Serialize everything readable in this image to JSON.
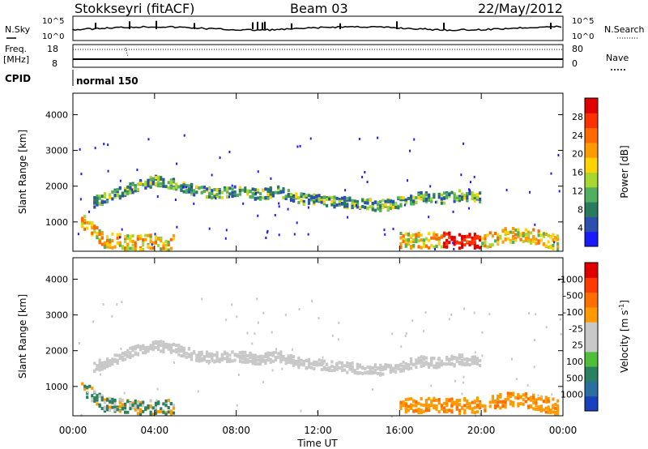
{
  "header": {
    "station": "Stokkseyri (fitACF)",
    "beam": "Beam 03",
    "date": "22/May/2012"
  },
  "top_panels": {
    "nsky": {
      "label": "N.Sky",
      "tick_top": "10^5",
      "tick_bottom": "10^0"
    },
    "nsearch": {
      "label": "N.Search",
      "tick_top": "10^5",
      "tick_bottom": "10^0"
    },
    "freq": {
      "label_line1": "Freq.",
      "label_line2": "[MHz]",
      "tick_top": "18",
      "tick_bottom": "8"
    },
    "nave": {
      "label": "Nave",
      "tick_top": "80",
      "tick_bottom": "0"
    },
    "cpid": {
      "label": "CPID",
      "value": "normal 150"
    }
  },
  "chart_data": [
    {
      "type": "heatmap",
      "name": "power",
      "ylabel": "Slant Range [km]",
      "xlabel": "Time UT",
      "xlim_hours": [
        0,
        24
      ],
      "ylim_km": [
        180,
        4600
      ],
      "y_ticks": [
        "1000",
        "2000",
        "3000",
        "4000"
      ],
      "x_ticks": [
        "00:00",
        "04:00",
        "08:00",
        "12:00",
        "16:00",
        "20:00",
        "00:00"
      ],
      "colorbar": {
        "label": "Power [dB]",
        "ticks": [
          "4",
          "8",
          "12",
          "16",
          "20",
          "24",
          "28"
        ],
        "colors": [
          "#1a1aff",
          "#2b4fb0",
          "#2a7a60",
          "#50b060",
          "#a8d830",
          "#ffd400",
          "#ff9a00",
          "#ff6a00",
          "#ff3000",
          "#e00000"
        ]
      }
    },
    {
      "type": "heatmap",
      "name": "velocity",
      "ylabel": "Slant Range [km]",
      "xlabel": "Time UT",
      "xlim_hours": [
        0,
        24
      ],
      "ylim_km": [
        180,
        4600
      ],
      "y_ticks": [
        "1000",
        "2000",
        "3000",
        "4000"
      ],
      "x_ticks": [
        "00:00",
        "04:00",
        "08:00",
        "12:00",
        "16:00",
        "20:00",
        "00:00"
      ],
      "colorbar": {
        "label": "Velocity [m s",
        "label_sup": "-1",
        "label_end": "]",
        "ticks": [
          "1000",
          "500",
          "100",
          "25",
          "-25",
          "-100",
          "-500",
          "-1000"
        ],
        "colors": [
          "#1a3fbf",
          "#2a6fa0",
          "#2a8060",
          "#4fbf3a",
          "#c8c8c8",
          "#c8c8c8",
          "#ff9a00",
          "#ff7000",
          "#ff3a00",
          "#e00000"
        ]
      }
    }
  ],
  "echo_bands": [
    {
      "name": "upper trace",
      "points": [
        [
          1.0,
          1550
        ],
        [
          2.0,
          1750
        ],
        [
          3.0,
          2000
        ],
        [
          4.0,
          2150
        ],
        [
          5.0,
          2050
        ],
        [
          6.0,
          1850
        ],
        [
          7.0,
          1800
        ],
        [
          8.0,
          1850
        ],
        [
          9.0,
          1750
        ],
        [
          10.0,
          1850
        ],
        [
          11.0,
          1650
        ],
        [
          12.0,
          1600
        ],
        [
          13.0,
          1550
        ],
        [
          14.0,
          1500
        ],
        [
          15.0,
          1450
        ],
        [
          16.0,
          1550
        ],
        [
          17.0,
          1700
        ],
        [
          18.0,
          1650
        ],
        [
          19.0,
          1750
        ],
        [
          20.0,
          1700
        ]
      ],
      "thickness_km": 180
    },
    {
      "name": "near-range echoes",
      "points": [
        [
          0.4,
          1000
        ],
        [
          1.0,
          750
        ],
        [
          1.5,
          500
        ],
        [
          2.0,
          450
        ],
        [
          3.0,
          420
        ],
        [
          4.0,
          420
        ],
        [
          5.0,
          410
        ]
      ],
      "thickness_km": 260
    },
    {
      "name": "late near echoes",
      "points": [
        [
          16.0,
          480
        ],
        [
          17.0,
          470
        ],
        [
          18.0,
          500
        ],
        [
          19.0,
          450
        ],
        [
          20.0,
          480
        ],
        [
          21.0,
          600
        ],
        [
          22.0,
          650
        ],
        [
          23.0,
          500
        ],
        [
          23.8,
          400
        ]
      ],
      "thickness_km": 260
    }
  ]
}
